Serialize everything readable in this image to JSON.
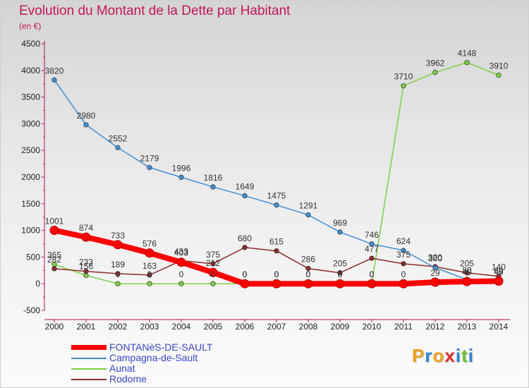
{
  "title": "Evolution du Montant de la Dette par Habitant",
  "unit": "(en €)",
  "brand": {
    "letters": [
      "P",
      "r",
      "o",
      "x",
      "i",
      "t",
      "i"
    ],
    "colors": [
      "#f0a020",
      "#2a82d0",
      "#f0a020",
      "#e03030",
      "#2a82d0",
      "#6cc030",
      "#2a82d0"
    ]
  },
  "chart_data": {
    "type": "line",
    "x": [
      "2000",
      "2001",
      "2002",
      "2003",
      "2004",
      "2005",
      "2006",
      "2007",
      "2008",
      "2009",
      "2010",
      "2011",
      "2012",
      "2013",
      "2014"
    ],
    "ylim": [
      -500,
      4500
    ],
    "yticks": [
      "-500",
      "0",
      "500",
      "1000",
      "1500",
      "2000",
      "2500",
      "3000",
      "3500",
      "4000",
      "4500"
    ],
    "grid": false,
    "legend": "bottom-left",
    "series": [
      {
        "name": "FONTANèS-DE-SAULT",
        "color": "#ff0000",
        "width": 8,
        "values": [
          1001,
          874,
          733,
          576,
          403,
          212,
          0,
          0,
          0,
          0,
          0,
          0,
          29,
          40,
          49
        ],
        "labels": [
          "1001",
          "874",
          "733",
          "576",
          "403",
          "212",
          "0",
          "0",
          "0",
          "0",
          "0",
          "0",
          "29",
          "40",
          "49"
        ]
      },
      {
        "name": "Campagna-de-Sault",
        "color": "#3f8fd4",
        "width": 1.5,
        "values": [
          3820,
          2980,
          2552,
          2179,
          1996,
          1816,
          1649,
          1475,
          1291,
          969,
          746,
          624,
          300,
          80,
          69
        ],
        "labels": [
          "3820",
          "2980",
          "2552",
          "2179",
          "1996",
          "1816",
          "1649",
          "1475",
          "1291",
          "969",
          "746",
          "624",
          "300",
          "80",
          "69"
        ]
      },
      {
        "name": "Aunat",
        "color": "#7cd042",
        "width": 1.5,
        "values": [
          365,
          156,
          0,
          0,
          0,
          0,
          0,
          0,
          0,
          0,
          0,
          3710,
          3962,
          4148,
          3910
        ],
        "labels": [
          "365",
          "156",
          "0",
          "0",
          "0",
          "0",
          "0",
          "0",
          "0",
          "0",
          "0",
          "3710",
          "3962",
          "4148",
          "3910"
        ]
      },
      {
        "name": "Rodome",
        "color": "#8b2c2c",
        "width": 1.5,
        "values": [
          282,
          233,
          189,
          163,
          433,
          375,
          680,
          615,
          286,
          205,
          477,
          375,
          320,
          205,
          140
        ],
        "labels": [
          "282",
          "233",
          "189",
          "163",
          "433",
          "375",
          "680",
          "615",
          "286",
          "205",
          "477",
          "375",
          "320",
          "205",
          "140"
        ]
      }
    ]
  }
}
